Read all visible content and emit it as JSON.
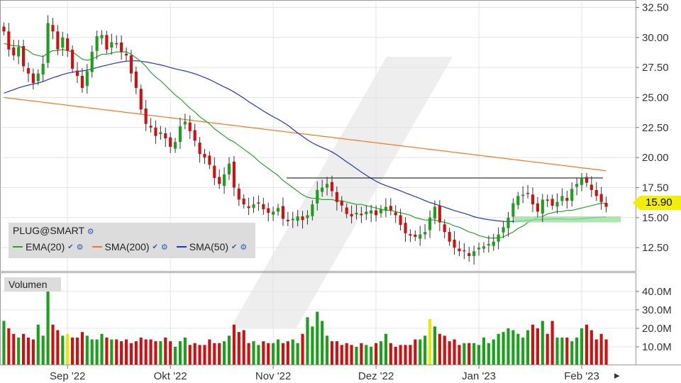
{
  "colors": {
    "up": "#1aa11a",
    "down": "#d01010",
    "neutral": "#e8e800",
    "ema20": "#2aa32a",
    "sma200": "#f07820",
    "sma50": "#2236c8",
    "resistance": "#222222",
    "support_zone": "#9be29b",
    "grid": "#e4e4e4",
    "price_tag": "#f2f000"
  },
  "legend": {
    "symbol": "PLUG@SMART",
    "items": [
      {
        "label": "EMA(20)",
        "color": "#2aa32a"
      },
      {
        "label": "SMA(200)",
        "color": "#f07820"
      },
      {
        "label": "SMA(50)",
        "color": "#2236c8"
      }
    ]
  },
  "volume_label": "Volumen",
  "last_price": "15.90",
  "chart_data": {
    "type": "candlestick",
    "title": "",
    "price_axis": {
      "ticks": [
        "32.50",
        "30.00",
        "27.50",
        "25.00",
        "22.50",
        "20.00",
        "17.50",
        "15.00",
        "12.50"
      ],
      "ylim": [
        10.5,
        33.0
      ]
    },
    "volume_axis": {
      "ticks": [
        "40.0M",
        "30.0M",
        "20.0M",
        "10.0M"
      ],
      "ylim": [
        0,
        48
      ]
    },
    "x_tick_labels": [
      "Sep '22",
      "Okt '22",
      "Nov '22",
      "Dez '22",
      "Jan '23",
      "Feb '23"
    ],
    "x_tick_index": [
      13,
      34,
      55,
      76,
      97,
      118
    ],
    "closes": [
      30.5,
      29.0,
      28.5,
      29.2,
      27.6,
      27.0,
      26.2,
      27.0,
      27.8,
      31.2,
      30.5,
      29.0,
      30.0,
      28.9,
      27.4,
      26.8,
      25.8,
      27.2,
      28.8,
      30.1,
      30.2,
      29.0,
      29.6,
      29.5,
      28.8,
      28.5,
      27.0,
      25.8,
      24.0,
      22.8,
      22.5,
      21.8,
      22.1,
      21.6,
      20.9,
      21.3,
      22.6,
      23.0,
      22.2,
      21.4,
      20.3,
      20.0,
      19.4,
      18.3,
      17.8,
      18.6,
      19.5,
      17.5,
      16.5,
      16.1,
      15.8,
      16.1,
      16.2,
      15.7,
      15.4,
      15.5,
      15.8,
      14.9,
      14.7,
      14.9,
      15.1,
      14.8,
      15.2,
      16.1,
      17.3,
      17.5,
      17.8,
      17.2,
      16.3,
      16.0,
      15.3,
      15.1,
      15.4,
      15.2,
      15.5,
      15.6,
      15.2,
      15.7,
      15.9,
      15.6,
      15.2,
      14.4,
      13.7,
      13.5,
      13.4,
      13.6,
      13.8,
      15.0,
      15.9,
      14.6,
      13.8,
      13.0,
      12.5,
      12.2,
      12.2,
      11.8,
      12.2,
      12.5,
      12.6,
      12.8,
      13.0,
      13.6,
      14.2,
      15.0,
      16.2,
      16.8,
      16.9,
      17.0,
      16.1,
      15.5,
      16.5,
      16.4,
      16.0,
      16.3,
      16.8,
      16.4,
      17.4,
      17.8,
      18.3,
      17.9,
      17.3,
      16.8,
      16.3,
      15.9
    ],
    "volumes": [
      24,
      20,
      17,
      15,
      17,
      15,
      14,
      22,
      16,
      46,
      22,
      19,
      16,
      17,
      15,
      15,
      18,
      16,
      14,
      14,
      17,
      15,
      14,
      14,
      13,
      14,
      12,
      13,
      15,
      14,
      14,
      13,
      13,
      15,
      13,
      10,
      13,
      15,
      11,
      12,
      11,
      11,
      14,
      12,
      12,
      13,
      16,
      22,
      18,
      19,
      12,
      13,
      11,
      13,
      12,
      12,
      14,
      12,
      13,
      14,
      12,
      17,
      26,
      21,
      29,
      24,
      16,
      13,
      13,
      11,
      12,
      11,
      10,
      12,
      11,
      10,
      12,
      13,
      17,
      12,
      10,
      11,
      11,
      11,
      14,
      14,
      16,
      25,
      21,
      17,
      16,
      13,
      14,
      11,
      12,
      12,
      12,
      11,
      15,
      12,
      14,
      17,
      18,
      20,
      19,
      17,
      15,
      19,
      22,
      20,
      24,
      17,
      24,
      15,
      15,
      15,
      13,
      15,
      20,
      22,
      19,
      14,
      17,
      14
    ],
    "ema20": [
      29.5,
      29.4,
      29.3,
      29.3,
      29.1,
      28.9,
      28.6,
      28.5,
      28.4,
      28.7,
      28.9,
      28.9,
      29.0,
      28.9,
      28.8,
      28.5,
      28.2,
      28.1,
      28.2,
      28.4,
      28.6,
      28.6,
      28.7,
      28.8,
      28.8,
      28.8,
      28.6,
      28.3,
      28.0,
      27.6,
      27.1,
      26.7,
      26.4,
      26.0,
      25.6,
      25.2,
      24.9,
      24.5,
      24.1,
      23.8,
      23.4,
      23.1,
      22.8,
      22.4,
      22.1,
      21.8,
      21.5,
      21.3,
      21.0,
      20.7,
      20.4,
      20.1,
      19.7,
      19.4,
      19.1,
      18.8,
      18.5,
      18.1,
      17.8,
      17.5,
      17.2,
      16.9,
      16.7,
      16.6,
      16.6,
      16.5,
      16.5,
      16.5,
      16.4,
      16.4,
      16.3,
      16.2,
      16.1,
      16.1,
      16.0,
      15.9,
      15.8,
      15.7,
      15.6,
      15.6,
      15.5,
      15.4,
      15.3,
      15.2,
      15.0,
      14.9,
      14.8,
      14.8,
      14.8,
      14.7,
      14.6,
      14.5,
      14.3,
      14.2,
      14.0,
      13.8,
      13.7,
      13.5,
      13.4,
      13.3,
      13.3,
      13.3,
      13.4,
      13.6,
      13.8,
      14.1,
      14.3,
      14.6,
      14.8,
      15.0,
      15.1,
      15.3,
      15.4,
      15.5,
      15.5,
      15.6,
      15.6,
      15.7,
      15.8,
      15.9,
      16.0,
      16.1,
      16.2,
      16.2
    ]
  },
  "overlays": {
    "resistance_level": 18.3,
    "resistance_from": 69,
    "resistance_to": 146,
    "support_zone_low": 14.6,
    "support_zone_high": 15.1,
    "support_from": 124,
    "support_to": 151
  }
}
